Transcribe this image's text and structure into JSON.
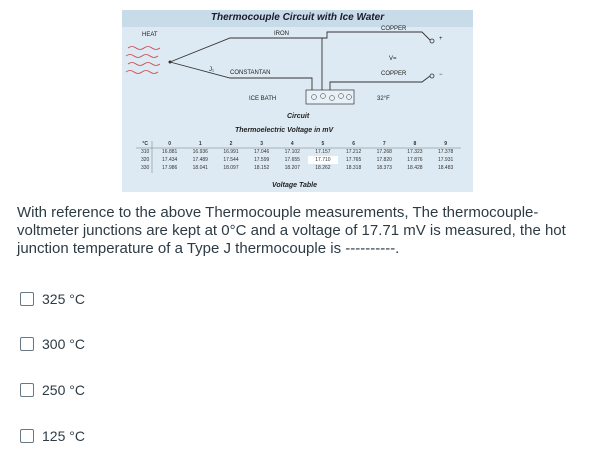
{
  "figure": {
    "title": "Thermocouple Circuit with Ice Water",
    "labels": {
      "heat": "HEAT",
      "iron": "IRON",
      "copper_top": "COPPER",
      "constantan": "CONSTANTAN",
      "copper_bottom": "COPPER",
      "ice_bath": "ICE BATH",
      "voltage": "V=",
      "temp": "32°F",
      "j1": "J₁",
      "plus": "+",
      "minus": "−",
      "circuit_caption": "Circuit",
      "table_caption": "Thermoelectric Voltage in mV",
      "table_footer": "Voltage Table"
    },
    "table": {
      "headers": [
        "°C",
        "0",
        "1",
        "2",
        "3",
        "4",
        "5",
        "6",
        "7",
        "8",
        "9"
      ],
      "rows": [
        [
          "310",
          "16.881",
          "16.936",
          "16.991",
          "17.046",
          "17.102",
          "17.157",
          "17.212",
          "17.268",
          "17.323",
          "17.378"
        ],
        [
          "320",
          "17.434",
          "17.489",
          "17.544",
          "17.599",
          "17.655",
          "17.710",
          "17.765",
          "17.820",
          "17.876",
          "17.931"
        ],
        [
          "330",
          "17.986",
          "18.041",
          "18.097",
          "18.152",
          "18.207",
          "18.262",
          "18.318",
          "18.373",
          "18.428",
          "18.483"
        ]
      ]
    }
  },
  "question": "With reference to the above Thermocouple measurements, The thermocouple-voltmeter junctions are kept at 0°C and a voltage of 17.71 mV is measured, the hot junction temperature of a Type J thermocouple is ----------.",
  "options": [
    {
      "label": "325 °C"
    },
    {
      "label": "300 °C"
    },
    {
      "label": "250 °C"
    },
    {
      "label": "125 °C"
    }
  ]
}
